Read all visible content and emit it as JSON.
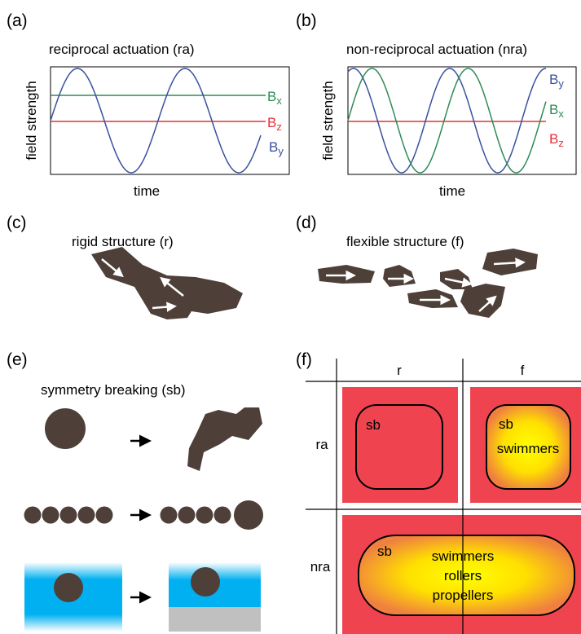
{
  "panel_a": {
    "label": "(a)",
    "title": "reciprocal actuation (ra)",
    "y_label": "field strength",
    "x_label": "time",
    "curves": [
      {
        "base": "B",
        "sub": "x"
      },
      {
        "base": "B",
        "sub": "z"
      },
      {
        "base": "B",
        "sub": "y"
      }
    ]
  },
  "panel_b": {
    "label": "(b)",
    "title": "non-reciprocal actuation (nra)",
    "y_label": "field strength",
    "x_label": "time",
    "curves": [
      {
        "base": "B",
        "sub": "y"
      },
      {
        "base": "B",
        "sub": "x"
      },
      {
        "base": "B",
        "sub": "z"
      }
    ]
  },
  "panel_c": {
    "label": "(c)",
    "title": "rigid structure (r)"
  },
  "panel_d": {
    "label": "(d)",
    "title": "flexible structure (f)"
  },
  "panel_e": {
    "label": "(e)",
    "title": "symmetry breaking (sb)"
  },
  "panel_f": {
    "label": "(f)",
    "columns": [
      "r",
      "f"
    ],
    "rows": [
      "ra",
      "nra"
    ],
    "cells": {
      "ra_r": [
        "sb"
      ],
      "ra_f": [
        "sb",
        "swimmers"
      ],
      "nra_rf": [
        "sb",
        "swimmers",
        "rollers",
        "propellers"
      ]
    }
  }
}
